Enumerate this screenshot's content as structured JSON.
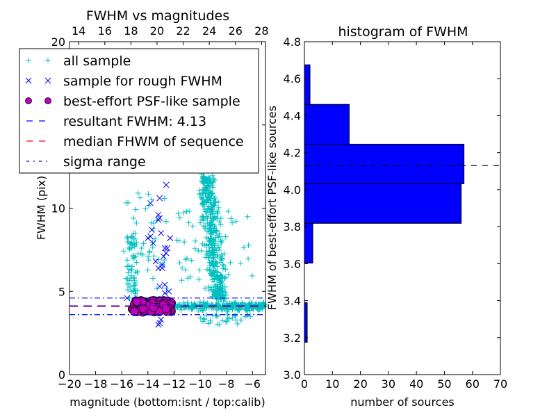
{
  "chart_data": [
    {
      "type": "scatter",
      "title": "FWHM vs magnitudes",
      "xlabel": "magnitude (bottom:isnt / top:calib)",
      "ylabel": "FWHM (pix)",
      "xlim": [
        -20,
        -5
      ],
      "ylim": [
        0,
        20
      ],
      "x_ticks": [
        "−20",
        "−18",
        "−16",
        "−14",
        "−12",
        "−10",
        "−8",
        "−6"
      ],
      "x_tick_values": [
        -20,
        -18,
        -16,
        -14,
        -12,
        -10,
        -8,
        -6
      ],
      "y_ticks": [
        "0",
        "5",
        "10",
        "15",
        "20"
      ],
      "y_tick_values": [
        0,
        5,
        10,
        15,
        20
      ],
      "top_axis": {
        "xlim": [
          13.3,
          28.3
        ],
        "ticks": [
          "14",
          "16",
          "18",
          "20",
          "22",
          "24",
          "26",
          "28"
        ],
        "tick_values": [
          14,
          16,
          18,
          20,
          22,
          24,
          26,
          28
        ]
      },
      "legend": {
        "placement": "upper-left",
        "entries": [
          {
            "label": "all sample",
            "marker": "+",
            "color": "#00bfbf"
          },
          {
            "label": "sample for rough FWHM",
            "marker": "x",
            "color": "#0000ff"
          },
          {
            "label": "best-effort PSF-like sample",
            "marker": "o",
            "color": "#bf00bf"
          },
          {
            "label": "resultant FWHM: 4.13",
            "marker": "dashed",
            "color": "#0000ff"
          },
          {
            "label": "median FHWM of sequence",
            "marker": "dashed",
            "color": "#ff0000"
          },
          {
            "label": "sigma range",
            "marker": "dashdot",
            "color": "#0000ff"
          }
        ]
      },
      "lines": {
        "resultant_fwhm": 4.13,
        "median_fwhm": 4.1,
        "sigma_low": 3.6,
        "sigma_high": 4.6
      },
      "series": [
        {
          "name": "all sample",
          "clusters": [
            {
              "x_range": [
                -15.6,
                -14.8
              ],
              "y_range": [
                4.0,
                8.5
              ],
              "count": 60
            },
            {
              "x_range": [
                -16,
                -12.5
              ],
              "y_range": [
                5,
                11
              ],
              "count": 50
            },
            {
              "x_range": [
                -12.5,
                -5
              ],
              "y_range": [
                3.6,
                4.6
              ],
              "count": 260
            },
            {
              "x_range": [
                -10.5,
                -7.5
              ],
              "y_range": [
                4.5,
                12
              ],
              "count": 380
            },
            {
              "x_range": [
                -10.5,
                -8.5
              ],
              "y_range": [
                10,
                19.6
              ],
              "count": 90
            },
            {
              "x_range": [
                -12,
                -6
              ],
              "y_range": [
                5,
                10
              ],
              "count": 60
            },
            {
              "x_range": [
                -10,
                -6
              ],
              "y_range": [
                3.0,
                3.6
              ],
              "count": 30
            }
          ]
        },
        {
          "name": "sample for rough FWHM",
          "points": [
            [
              -12.6,
              11.4
            ],
            [
              -13.1,
              10.6
            ],
            [
              -13.8,
              10.3
            ],
            [
              -13.2,
              9.6
            ],
            [
              -13.1,
              9.4
            ],
            [
              -13.2,
              9.3
            ],
            [
              -13.7,
              8.7
            ],
            [
              -13.8,
              8.3
            ],
            [
              -14.0,
              8.2
            ],
            [
              -13.0,
              8.5
            ],
            [
              -12.3,
              8.2
            ],
            [
              -13.6,
              7.9
            ],
            [
              -12.7,
              7.6
            ],
            [
              -12.5,
              7.6
            ],
            [
              -12.6,
              7.3
            ],
            [
              -12.8,
              7.1
            ],
            [
              -13.4,
              6.8
            ],
            [
              -12.9,
              6.6
            ],
            [
              -13.2,
              6.4
            ],
            [
              -12.9,
              6.4
            ],
            [
              -13.1,
              5.3
            ],
            [
              -12.7,
              5.4
            ],
            [
              -12.4,
              5.0
            ],
            [
              -12.7,
              4.9
            ],
            [
              -15.6,
              4.6
            ],
            [
              -13.0,
              3.3
            ],
            [
              -13.1,
              3.1
            ],
            [
              -13.2,
              3.0
            ]
          ]
        },
        {
          "name": "best-effort PSF-like sample",
          "x_range": [
            -15.2,
            -12.2
          ],
          "y_range": [
            3.75,
            4.45
          ],
          "count": 120
        }
      ]
    },
    {
      "type": "bar",
      "orientation": "horizontal",
      "title": "histogram of FWHM",
      "xlabel": "number of sources",
      "ylabel": "FWHM of best-effort PSF-like sources",
      "xlim": [
        0,
        70
      ],
      "ylim": [
        3.0,
        4.8
      ],
      "x_ticks": [
        "0",
        "10",
        "20",
        "30",
        "40",
        "50",
        "60",
        "70"
      ],
      "x_tick_values": [
        0,
        10,
        20,
        30,
        40,
        50,
        60,
        70
      ],
      "y_ticks": [
        "3.0",
        "3.2",
        "3.4",
        "3.6",
        "3.8",
        "4.0",
        "4.2",
        "4.4",
        "4.6",
        "4.8"
      ],
      "y_tick_values": [
        3.0,
        3.2,
        3.4,
        3.6,
        3.8,
        4.0,
        4.2,
        4.4,
        4.6,
        4.8
      ],
      "bin_edges": [
        3.175,
        3.389,
        3.603,
        3.818,
        4.032,
        4.246,
        4.461,
        4.675
      ],
      "values": [
        1,
        0,
        3,
        56,
        57,
        16,
        2
      ],
      "bar_color": "#0000ff",
      "reference_line": {
        "y": 4.13,
        "style": "dashed",
        "color": "#000000"
      }
    }
  ]
}
